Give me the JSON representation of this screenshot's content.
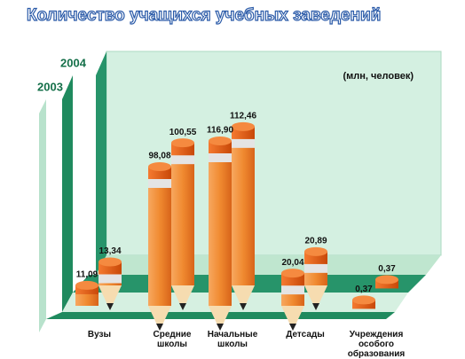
{
  "chart_data": {
    "type": "pencil-bar",
    "title": "Количество учащихся учебных заведений",
    "unit_label": "(млн, человек)",
    "categories": [
      "Вузы",
      "Средние школы",
      "Начальные школы",
      "Детсады",
      "Учреждения особого образования"
    ],
    "series": [
      {
        "name": "2003",
        "color": "#f07a20",
        "values": [
          11.09,
          98.08,
          116.9,
          20.04,
          0.37
        ],
        "value_labels": [
          "11,09",
          "98,08",
          "116,90",
          "20,04",
          "0,37"
        ]
      },
      {
        "name": "2004",
        "color": "#f07a20",
        "values": [
          13.34,
          100.55,
          112.46,
          20.89,
          0.37
        ],
        "value_labels": [
          "13,34",
          "100,55",
          "112,46",
          "20,89",
          "0,37"
        ]
      }
    ]
  }
}
